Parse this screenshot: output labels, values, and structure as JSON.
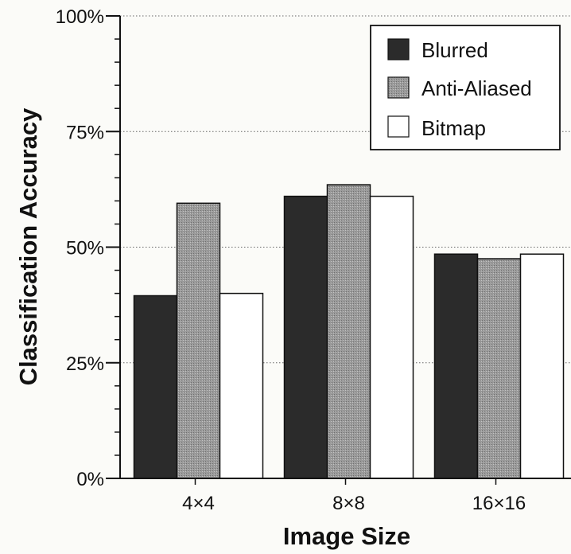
{
  "chart_data": {
    "type": "bar",
    "title": "",
    "xlabel": "Image Size",
    "ylabel": "Classification Accuracy",
    "categories": [
      "4×4",
      "8×8",
      "16×16"
    ],
    "ylim": [
      0,
      100
    ],
    "y_ticks": [
      0,
      25,
      50,
      75,
      100
    ],
    "y_tick_labels": [
      "0%",
      "25%",
      "50%",
      "75%",
      "100%"
    ],
    "grid": "horizontal dotted",
    "legend_position": "top-right",
    "series": [
      {
        "name": "Blurred",
        "values": [
          39.5,
          61,
          48.5
        ],
        "color": "#2b2b2b"
      },
      {
        "name": "Anti-Aliased",
        "values": [
          59.5,
          63.5,
          47.5
        ],
        "color": "#8e8e8e"
      },
      {
        "name": "Bitmap",
        "values": [
          40,
          61,
          48.5
        ],
        "color": "#ffffff"
      }
    ]
  }
}
